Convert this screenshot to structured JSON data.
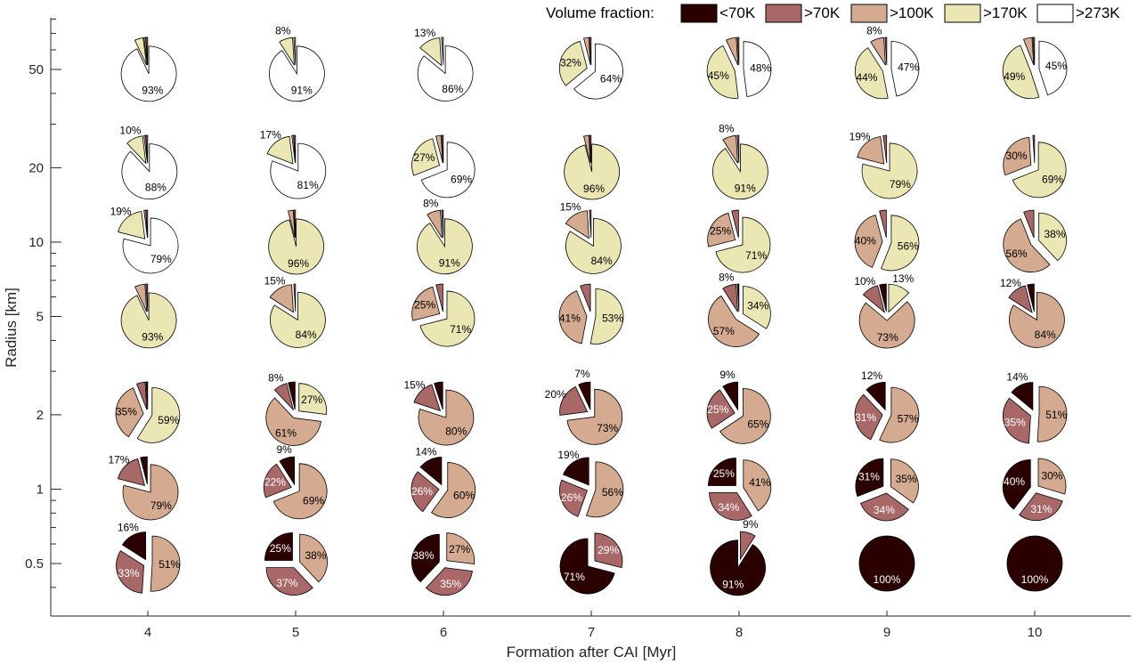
{
  "chart_data": {
    "type": "pie",
    "xlabel": "Formation after CAI [Myr]",
    "ylabel": "Radius [km]",
    "x_ticks": [
      "4",
      "5",
      "6",
      "7",
      "8",
      "9",
      "10"
    ],
    "y_scale": "log",
    "y_ticks": [
      "50",
      "20",
      "10",
      "5",
      "2",
      "1",
      "0.5"
    ],
    "legend": {
      "title": "Volume fraction:",
      "placement": "top-right",
      "entries": [
        {
          "label": "<70K",
          "color": "#2b0000"
        },
        {
          "label": ">70K",
          "color": "#a86868"
        },
        {
          "label": ">100K",
          "color": "#d4aa90"
        },
        {
          "label": ">170K",
          "color": "#ebe7b5"
        },
        {
          "label": ">273K",
          "color": "#ffffff"
        }
      ]
    },
    "series_order": [
      "<70K",
      ">70K",
      ">100K",
      ">170K",
      ">273K"
    ],
    "radii_km": [
      50,
      20,
      10,
      5,
      2,
      1,
      0.5
    ],
    "formation_myr": [
      4,
      5,
      6,
      7,
      8,
      9,
      10
    ],
    "pies": [
      {
        "x": 4,
        "y": 50,
        "values": [
          0,
          1,
          1,
          5,
          93
        ],
        "labels": [
          "",
          "",
          "",
          "",
          "93%"
        ]
      },
      {
        "x": 5,
        "y": 50,
        "values": [
          0,
          0,
          1,
          8,
          91
        ],
        "labels": [
          "",
          "",
          "",
          "8%",
          "91%"
        ]
      },
      {
        "x": 6,
        "y": 50,
        "values": [
          0,
          0,
          1,
          13,
          86
        ],
        "labels": [
          "",
          "",
          "",
          "13%",
          "86%"
        ]
      },
      {
        "x": 7,
        "y": 50,
        "values": [
          0,
          1,
          3,
          32,
          64
        ],
        "labels": [
          "",
          "",
          "",
          "32%",
          "64%"
        ]
      },
      {
        "x": 8,
        "y": 50,
        "values": [
          0,
          1,
          6,
          45,
          48
        ],
        "labels": [
          "",
          "",
          "",
          "45%",
          "48%"
        ]
      },
      {
        "x": 9,
        "y": 50,
        "values": [
          0,
          1,
          8,
          44,
          47
        ],
        "labels": [
          "",
          "",
          "8%",
          "44%",
          "47%"
        ]
      },
      {
        "x": 10,
        "y": 50,
        "values": [
          0,
          1,
          5,
          49,
          45
        ],
        "labels": [
          "",
          "",
          "",
          "49%",
          "45%"
        ]
      },
      {
        "x": 4,
        "y": 20,
        "values": [
          0,
          1,
          1,
          10,
          88
        ],
        "labels": [
          "",
          "",
          "",
          "10%",
          "88%"
        ]
      },
      {
        "x": 5,
        "y": 20,
        "values": [
          0,
          1,
          1,
          17,
          81
        ],
        "labels": [
          "",
          "",
          "",
          "17%",
          "81%"
        ]
      },
      {
        "x": 6,
        "y": 20,
        "values": [
          0,
          1,
          3,
          27,
          69
        ],
        "labels": [
          "",
          "",
          "",
          "27%",
          "69%"
        ]
      },
      {
        "x": 7,
        "y": 20,
        "values": [
          0,
          1,
          3,
          96,
          0
        ],
        "labels": [
          "",
          "",
          "",
          "96%",
          ""
        ]
      },
      {
        "x": 8,
        "y": 20,
        "values": [
          0,
          1,
          8,
          91,
          0
        ],
        "labels": [
          "",
          "",
          "8%",
          "91%",
          ""
        ]
      },
      {
        "x": 9,
        "y": 20,
        "values": [
          0,
          2,
          19,
          79,
          0
        ],
        "labels": [
          "",
          "",
          "19%",
          "79%",
          ""
        ]
      },
      {
        "x": 10,
        "y": 20,
        "values": [
          0,
          1,
          30,
          69,
          0
        ],
        "labels": [
          "",
          "",
          "30%",
          "69%",
          ""
        ]
      },
      {
        "x": 4,
        "y": 10,
        "values": [
          0,
          1,
          1,
          19,
          79
        ],
        "labels": [
          "",
          "",
          "",
          "19%",
          "79%"
        ]
      },
      {
        "x": 5,
        "y": 10,
        "values": [
          0,
          1,
          3,
          96,
          0
        ],
        "labels": [
          "",
          "",
          "",
          "96%",
          ""
        ]
      },
      {
        "x": 6,
        "y": 10,
        "values": [
          0,
          1,
          8,
          91,
          0
        ],
        "labels": [
          "",
          "",
          "8%",
          "91%",
          ""
        ]
      },
      {
        "x": 7,
        "y": 10,
        "values": [
          0,
          1,
          15,
          84,
          0
        ],
        "labels": [
          "",
          "",
          "15%",
          "84%",
          ""
        ]
      },
      {
        "x": 8,
        "y": 10,
        "values": [
          0,
          4,
          25,
          71,
          0
        ],
        "labels": [
          "",
          "",
          "25%",
          "71%",
          ""
        ]
      },
      {
        "x": 9,
        "y": 10,
        "values": [
          0,
          4,
          40,
          56,
          0
        ],
        "labels": [
          "",
          "",
          "40%",
          "56%",
          ""
        ]
      },
      {
        "x": 10,
        "y": 10,
        "values": [
          0,
          6,
          56,
          38,
          0
        ],
        "labels": [
          "",
          "",
          "56%",
          "38%",
          ""
        ]
      },
      {
        "x": 4,
        "y": 5,
        "values": [
          0,
          1,
          6,
          93,
          0
        ],
        "labels": [
          "",
          "",
          "",
          "93%",
          ""
        ]
      },
      {
        "x": 5,
        "y": 5,
        "values": [
          0,
          1,
          15,
          84,
          0
        ],
        "labels": [
          "",
          "",
          "15%",
          "84%",
          ""
        ]
      },
      {
        "x": 6,
        "y": 5,
        "values": [
          0,
          4,
          25,
          71,
          0
        ],
        "labels": [
          "",
          "",
          "25%",
          "71%",
          ""
        ]
      },
      {
        "x": 7,
        "y": 5,
        "values": [
          0,
          6,
          41,
          53,
          0
        ],
        "labels": [
          "",
          "",
          "41%",
          "53%",
          ""
        ]
      },
      {
        "x": 8,
        "y": 5,
        "values": [
          1,
          8,
          57,
          34,
          0
        ],
        "labels": [
          "",
          "8%",
          "57%",
          "34%",
          ""
        ]
      },
      {
        "x": 9,
        "y": 5,
        "values": [
          4,
          10,
          73,
          13,
          0
        ],
        "labels": [
          "",
          "10%",
          "73%",
          "13%",
          ""
        ]
      },
      {
        "x": 10,
        "y": 5,
        "values": [
          4,
          12,
          84,
          0,
          0
        ],
        "labels": [
          "",
          "12%",
          "84%",
          "",
          ""
        ]
      },
      {
        "x": 4,
        "y": 2,
        "values": [
          1,
          5,
          35,
          59,
          0
        ],
        "labels": [
          "",
          "",
          "35%",
          "59%",
          ""
        ]
      },
      {
        "x": 5,
        "y": 2,
        "values": [
          4,
          8,
          61,
          27,
          0
        ],
        "labels": [
          "",
          "8%",
          "61%",
          "27%",
          ""
        ]
      },
      {
        "x": 6,
        "y": 2,
        "values": [
          5,
          15,
          80,
          0,
          0
        ],
        "labels": [
          "",
          "15%",
          "80%",
          "",
          ""
        ]
      },
      {
        "x": 7,
        "y": 2,
        "values": [
          7,
          20,
          73,
          0,
          0
        ],
        "labels": [
          "7%",
          "20%",
          "73%",
          "",
          ""
        ]
      },
      {
        "x": 8,
        "y": 2,
        "values": [
          9,
          25,
          65,
          0,
          0
        ],
        "labels": [
          "9%",
          "25%",
          "65%",
          "",
          ""
        ]
      },
      {
        "x": 9,
        "y": 2,
        "values": [
          12,
          31,
          57,
          0,
          0
        ],
        "labels": [
          "12%",
          "31%",
          "57%",
          "",
          ""
        ]
      },
      {
        "x": 10,
        "y": 2,
        "values": [
          14,
          35,
          51,
          0,
          0
        ],
        "labels": [
          "14%",
          "35%",
          "51%",
          "",
          ""
        ]
      },
      {
        "x": 4,
        "y": 1,
        "values": [
          4,
          17,
          79,
          0,
          0
        ],
        "labels": [
          "",
          "17%",
          "79%",
          "",
          ""
        ]
      },
      {
        "x": 5,
        "y": 1,
        "values": [
          9,
          22,
          69,
          0,
          0
        ],
        "labels": [
          "9%",
          "22%",
          "69%",
          "",
          ""
        ]
      },
      {
        "x": 6,
        "y": 1,
        "values": [
          14,
          26,
          60,
          0,
          0
        ],
        "labels": [
          "14%",
          "26%",
          "60%",
          "",
          ""
        ]
      },
      {
        "x": 7,
        "y": 1,
        "values": [
          19,
          26,
          56,
          0,
          0
        ],
        "labels": [
          "19%",
          "26%",
          "56%",
          "",
          ""
        ]
      },
      {
        "x": 8,
        "y": 1,
        "values": [
          25,
          34,
          41,
          0,
          0
        ],
        "labels": [
          "25%",
          "34%",
          "41%",
          "",
          ""
        ]
      },
      {
        "x": 9,
        "y": 1,
        "values": [
          31,
          34,
          35,
          0,
          0
        ],
        "labels": [
          "31%",
          "34%",
          "35%",
          "",
          ""
        ]
      },
      {
        "x": 10,
        "y": 1,
        "values": [
          40,
          31,
          30,
          0,
          0
        ],
        "labels": [
          "40%",
          "31%",
          "30%",
          "",
          ""
        ]
      },
      {
        "x": 4,
        "y": 0.5,
        "values": [
          16,
          33,
          51,
          0,
          0
        ],
        "labels": [
          "16%",
          "33%",
          "51%",
          "",
          ""
        ]
      },
      {
        "x": 5,
        "y": 0.5,
        "values": [
          25,
          37,
          38,
          0,
          0
        ],
        "labels": [
          "25%",
          "37%",
          "38%",
          "",
          ""
        ]
      },
      {
        "x": 6,
        "y": 0.5,
        "values": [
          38,
          35,
          27,
          0,
          0
        ],
        "labels": [
          "38%",
          "35%",
          "27%",
          "",
          ""
        ]
      },
      {
        "x": 7,
        "y": 0.5,
        "values": [
          71,
          29,
          0,
          0,
          0
        ],
        "labels": [
          "71%",
          "29%",
          "",
          "",
          ""
        ]
      },
      {
        "x": 8,
        "y": 0.5,
        "values": [
          91,
          9,
          0,
          0,
          0
        ],
        "labels": [
          "91%",
          "9%",
          "",
          "",
          ""
        ]
      },
      {
        "x": 9,
        "y": 0.5,
        "values": [
          100,
          0,
          0,
          0,
          0
        ],
        "labels": [
          "100%",
          "",
          "",
          "",
          ""
        ]
      },
      {
        "x": 10,
        "y": 0.5,
        "values": [
          100,
          0,
          0,
          0,
          0
        ],
        "labels": [
          "100%",
          "",
          "",
          "",
          ""
        ]
      }
    ]
  }
}
